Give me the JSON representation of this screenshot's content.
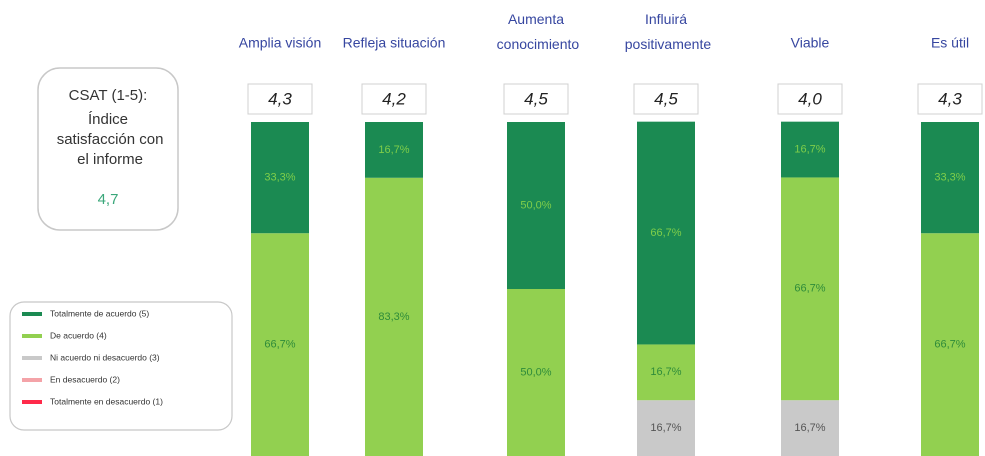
{
  "chart_data": {
    "type": "stacked_bar",
    "categories": [
      "Amplia visión",
      "Refleja situación",
      "Aumenta conocimiento",
      "Influirá positivamente",
      "Viable",
      "Es útil"
    ],
    "averages": [
      "4,3",
      "4,2",
      "4,5",
      "4,5",
      "4,0",
      "4,3"
    ],
    "csat": {
      "title": "CSAT (1-5):",
      "description": "Índice satisfacción con el informe",
      "value": "4,7"
    },
    "ylim": [
      0,
      100
    ],
    "series": [
      {
        "name": "Totalmente en desacuerdo (1)",
        "color": "#ff2a4a",
        "values": [
          0,
          0,
          0,
          0,
          0,
          0
        ],
        "value_labels": [
          null,
          null,
          null,
          null,
          null,
          null
        ]
      },
      {
        "name": "En desacuerdo (2)",
        "color": "#f4a3a8",
        "values": [
          0,
          0,
          0,
          0,
          0,
          0
        ],
        "value_labels": [
          null,
          null,
          null,
          null,
          null,
          null
        ]
      },
      {
        "name": "Ni acuerdo ni desacuerdo (3)",
        "color": "#c9c9c9",
        "values": [
          0,
          0,
          0,
          16.7,
          16.7,
          0
        ],
        "value_labels": [
          null,
          null,
          null,
          "16,7%",
          "16,7%",
          null
        ]
      },
      {
        "name": "De acuerdo (4)",
        "color": "#92d050",
        "values": [
          66.7,
          83.3,
          50.0,
          16.7,
          66.7,
          66.7
        ],
        "value_labels": [
          "66,7%",
          "83,3%",
          "50,0%",
          "16,7%",
          "66,7%",
          "66,7%"
        ]
      },
      {
        "name": "Totalmente de acuerdo (5)",
        "color": "#1b8a52",
        "values": [
          33.3,
          16.7,
          50.0,
          66.7,
          16.7,
          33.3
        ],
        "value_labels": [
          "33,3%",
          "16,7%",
          "50,0%",
          "66,7%",
          "16,7%",
          "33,3%"
        ]
      }
    ]
  }
}
